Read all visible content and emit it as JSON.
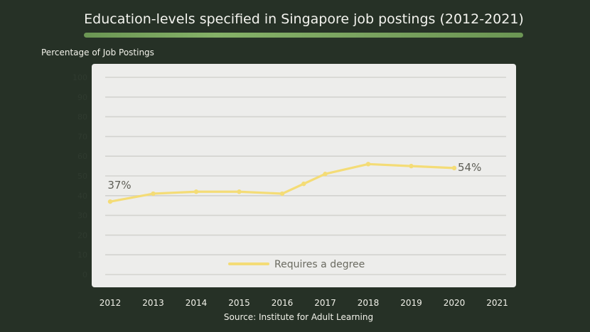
{
  "title": "Education-levels specified in Singapore job postings (2012-2021)",
  "source": "Source: Institute for Adult Learning",
  "colors": {
    "background": "#263126",
    "panel": "#ededeb",
    "line": "#f4dc76",
    "underline": "#7ea862"
  },
  "chart_data": {
    "type": "line",
    "title": "Education-levels specified in Singapore job postings (2012-2021)",
    "ylabel": "Percentage of Job Postings",
    "xlabel": "",
    "x_ticks": [
      "2012",
      "2013",
      "2014",
      "2015",
      "2016",
      "2017",
      "2018",
      "2019",
      "2020",
      "2021"
    ],
    "y_ticks": [
      "100",
      "90",
      "80",
      "70",
      "60",
      "50",
      "40",
      "30",
      "20",
      "10",
      "0"
    ],
    "ylim": [
      0,
      100
    ],
    "grid": true,
    "legend_position": "bottom-center",
    "series": [
      {
        "name": "Requires a degree",
        "points": [
          {
            "x": 2012,
            "y": 37
          },
          {
            "x": 2013,
            "y": 41
          },
          {
            "x": 2014,
            "y": 42
          },
          {
            "x": 2015,
            "y": 42
          },
          {
            "x": 2016,
            "y": 41
          },
          {
            "x": 2016.5,
            "y": 46
          },
          {
            "x": 2017,
            "y": 51
          },
          {
            "x": 2018,
            "y": 56
          },
          {
            "x": 2019,
            "y": 55
          },
          {
            "x": 2020,
            "y": 54
          }
        ]
      }
    ],
    "annotations": [
      {
        "text": "37%",
        "x": 2012,
        "y": 37
      },
      {
        "text": "54%",
        "x": 2020,
        "y": 54
      }
    ]
  }
}
